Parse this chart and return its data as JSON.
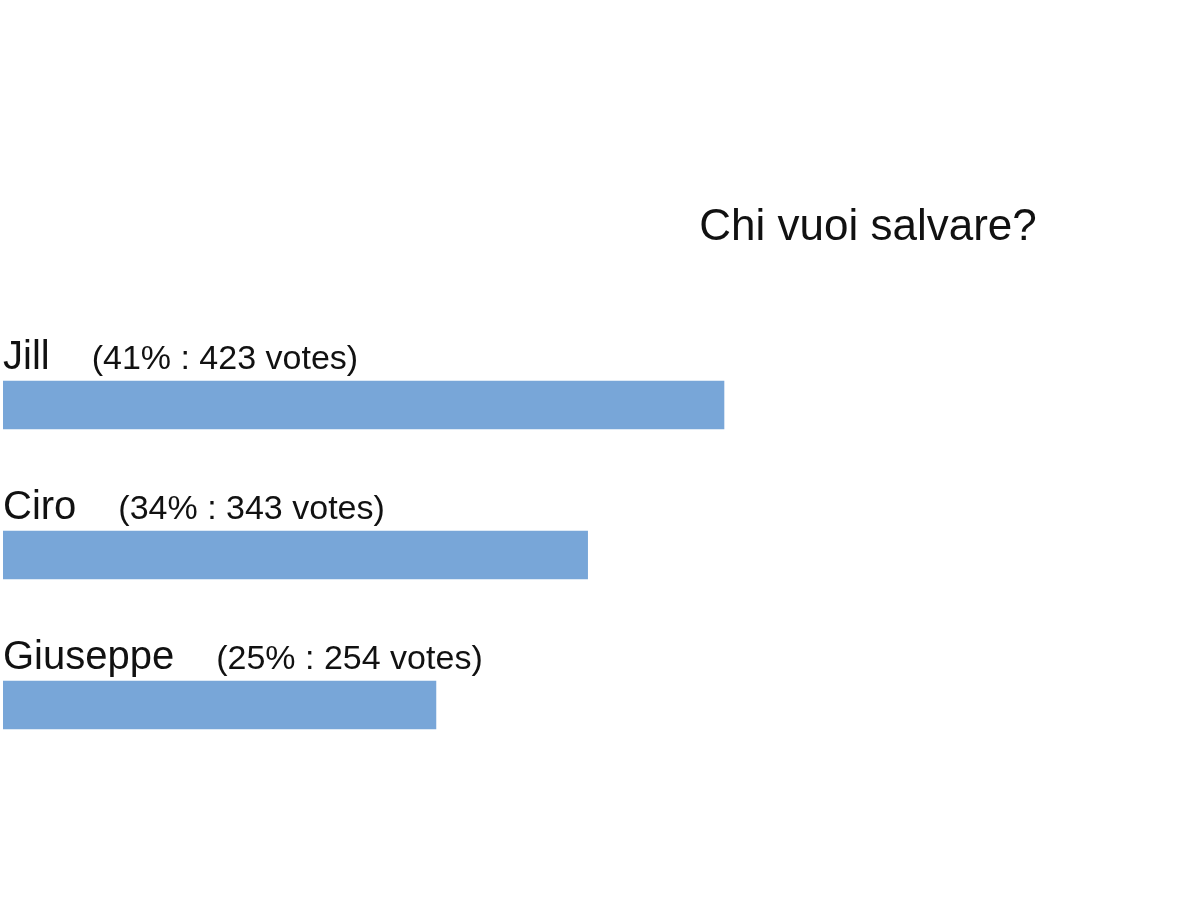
{
  "chart_data": {
    "type": "bar",
    "orientation": "horizontal",
    "title": "Chi vuoi salvare?",
    "categories": [
      "Jill",
      "Ciro",
      "Giuseppe"
    ],
    "values": [
      423,
      343,
      254
    ],
    "value_labels": [
      "(41% : 423 votes)",
      "(34% : 343 votes)",
      "(25% : 254 votes)"
    ],
    "color": "#78a6d8",
    "tick_labels": false
  }
}
